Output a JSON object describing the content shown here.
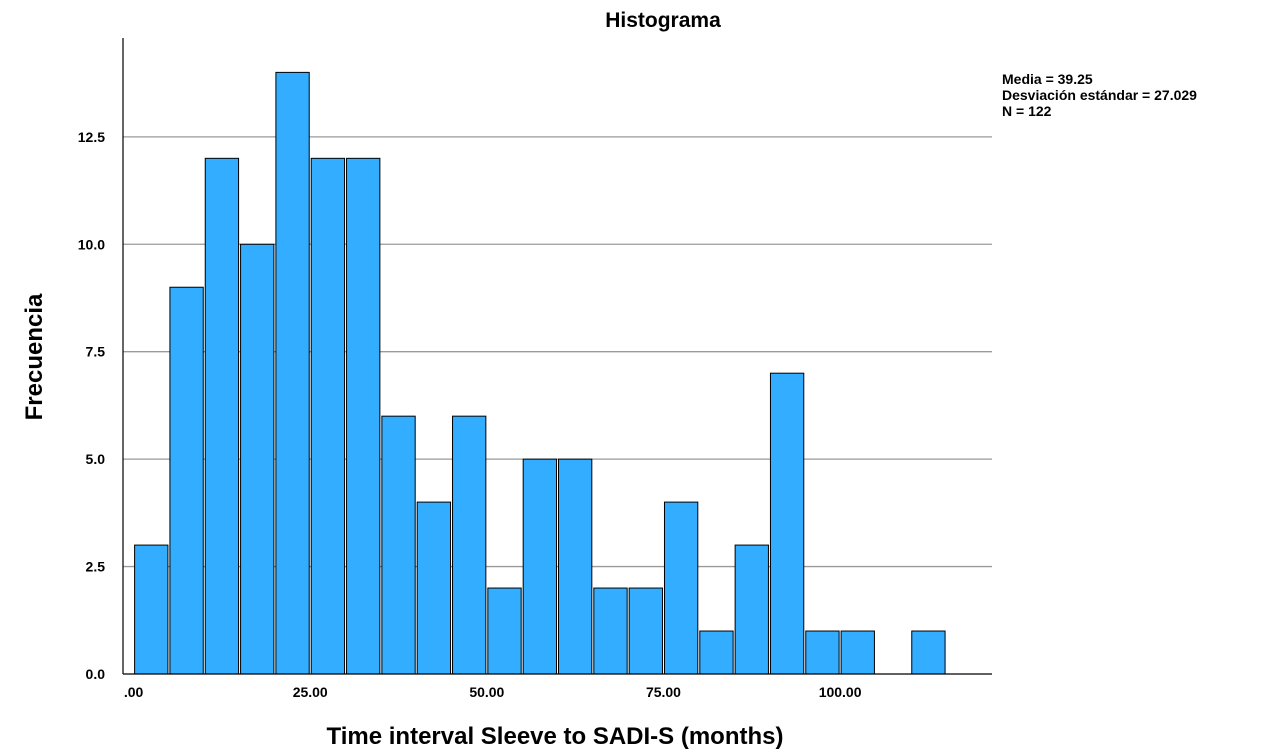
{
  "chart_data": {
    "type": "bar",
    "title": "Histograma",
    "xlabel": "Time interval Sleeve to SADI-S (months)",
    "ylabel": "Frecuencia",
    "bin_width": 5,
    "bins": [
      {
        "x0": 0,
        "x1": 5,
        "count": 3
      },
      {
        "x0": 5,
        "x1": 10,
        "count": 9
      },
      {
        "x0": 10,
        "x1": 15,
        "count": 12
      },
      {
        "x0": 15,
        "x1": 20,
        "count": 10
      },
      {
        "x0": 20,
        "x1": 25,
        "count": 14
      },
      {
        "x0": 25,
        "x1": 30,
        "count": 12
      },
      {
        "x0": 30,
        "x1": 35,
        "count": 12
      },
      {
        "x0": 35,
        "x1": 40,
        "count": 6
      },
      {
        "x0": 40,
        "x1": 45,
        "count": 4
      },
      {
        "x0": 45,
        "x1": 50,
        "count": 6
      },
      {
        "x0": 50,
        "x1": 55,
        "count": 2
      },
      {
        "x0": 55,
        "x1": 60,
        "count": 5
      },
      {
        "x0": 60,
        "x1": 65,
        "count": 5
      },
      {
        "x0": 65,
        "x1": 70,
        "count": 2
      },
      {
        "x0": 70,
        "x1": 75,
        "count": 2
      },
      {
        "x0": 75,
        "x1": 80,
        "count": 4
      },
      {
        "x0": 80,
        "x1": 85,
        "count": 1
      },
      {
        "x0": 85,
        "x1": 90,
        "count": 3
      },
      {
        "x0": 90,
        "x1": 95,
        "count": 7
      },
      {
        "x0": 95,
        "x1": 100,
        "count": 1
      },
      {
        "x0": 100,
        "x1": 105,
        "count": 1
      },
      {
        "x0": 110,
        "x1": 115,
        "count": 1
      }
    ],
    "xlim": [
      -1.5,
      121.5
    ],
    "ylim": [
      0,
      14.8
    ],
    "x_ticks": [
      {
        "value": 0,
        "label": ".00"
      },
      {
        "value": 25,
        "label": "25.00"
      },
      {
        "value": 50,
        "label": "50.00"
      },
      {
        "value": 75,
        "label": "75.00"
      },
      {
        "value": 100,
        "label": "100.00"
      }
    ],
    "y_ticks": [
      {
        "value": 0,
        "label": "0.0"
      },
      {
        "value": 2.5,
        "label": "2.5"
      },
      {
        "value": 5,
        "label": "5.0"
      },
      {
        "value": 7.5,
        "label": "7.5"
      },
      {
        "value": 10,
        "label": "10.0"
      },
      {
        "value": 12.5,
        "label": "12.5"
      }
    ],
    "grid": true,
    "bar_color": "#33adff",
    "stats": {
      "media": "Media = 39.25",
      "desviacion": "Desviación estándar = 27.029",
      "n": "N = 122"
    },
    "stats_placement": "top-right"
  }
}
